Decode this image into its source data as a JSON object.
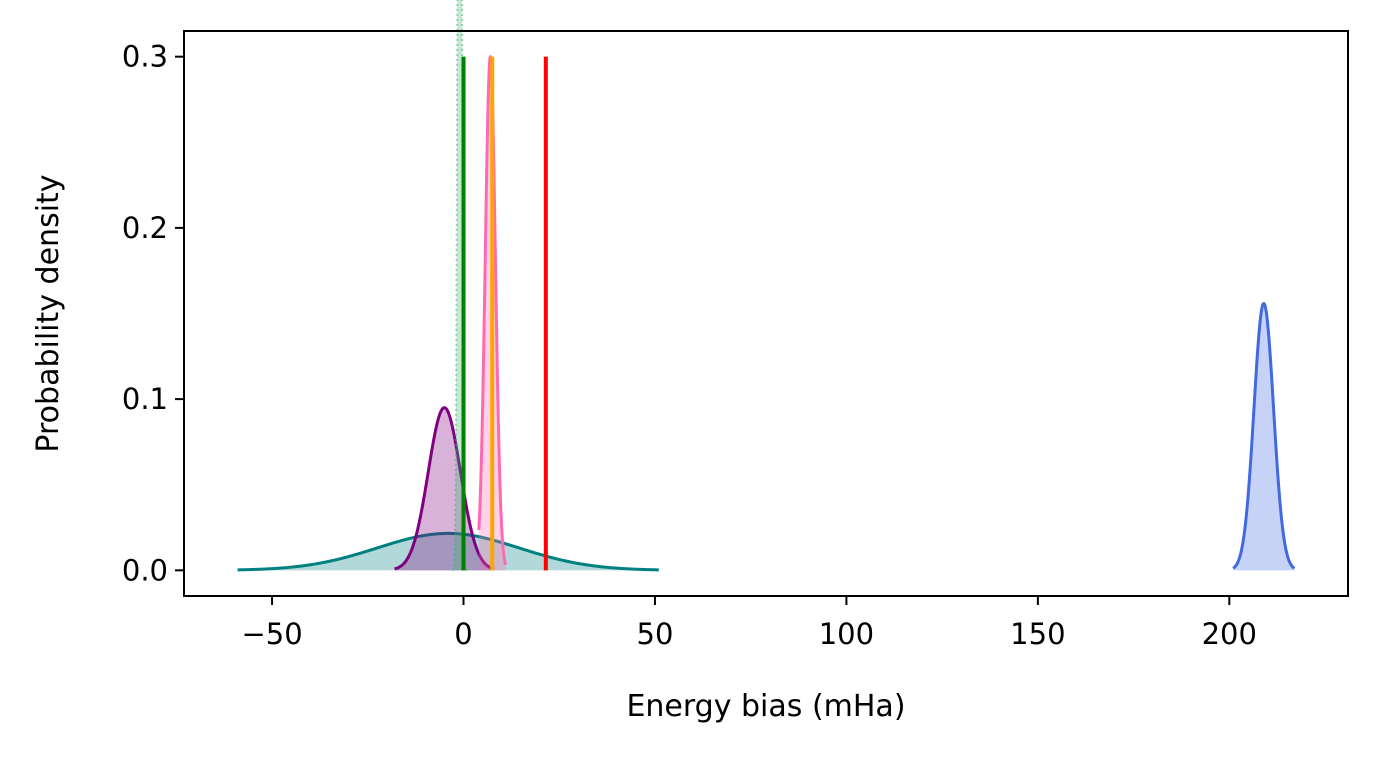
{
  "chart_data": {
    "type": "area",
    "title": "",
    "xlabel": "Energy bias (mHa)",
    "ylabel": "Probability density",
    "xlim": [
      -73,
      231
    ],
    "ylim": [
      -0.015,
      0.315
    ],
    "xticks": [
      -50,
      0,
      50,
      100,
      150,
      200
    ],
    "xtick_labels": [
      "−50",
      "0",
      "50",
      "100",
      "150",
      "200"
    ],
    "yticks": [
      0.0,
      0.1,
      0.2,
      0.3
    ],
    "ytick_labels": [
      "0.0",
      "0.1",
      "0.2",
      "0.3"
    ],
    "grid": false,
    "legend": "none",
    "distributions": [
      {
        "kind": "gaussian",
        "mean": -4,
        "sd": 18.5,
        "x_range": [
          -59,
          51
        ],
        "color": "#008080",
        "fill_opacity": 0.3
      },
      {
        "kind": "gaussian",
        "mean": -5,
        "sd": 4.2,
        "x_range": [
          -18,
          8
        ],
        "color": "#800080",
        "fill_opacity": 0.3
      },
      {
        "kind": "gaussian",
        "mean": 7,
        "sd": 1.33,
        "x_range": [
          4,
          11
        ],
        "color": "#ff69b4",
        "fill_opacity": 0.3
      },
      {
        "kind": "gaussian",
        "mean": -1,
        "sd": 0.45,
        "x_range": [
          -3,
          1
        ],
        "color": "#3cb371",
        "fill_opacity": 0.3,
        "dotted": true
      },
      {
        "kind": "gaussian",
        "mean": 209,
        "sd": 2.56,
        "x_range": [
          201,
          217
        ],
        "color": "#4169e1",
        "fill_opacity": 0.3
      }
    ],
    "vertical_lines": [
      {
        "x": 0,
        "y_top": 0.3,
        "color": "#008000"
      },
      {
        "x": 7.5,
        "y_top": 0.3,
        "color": "#ffa500"
      },
      {
        "x": 21.5,
        "y_top": 0.3,
        "color": "#ff0000"
      }
    ]
  }
}
